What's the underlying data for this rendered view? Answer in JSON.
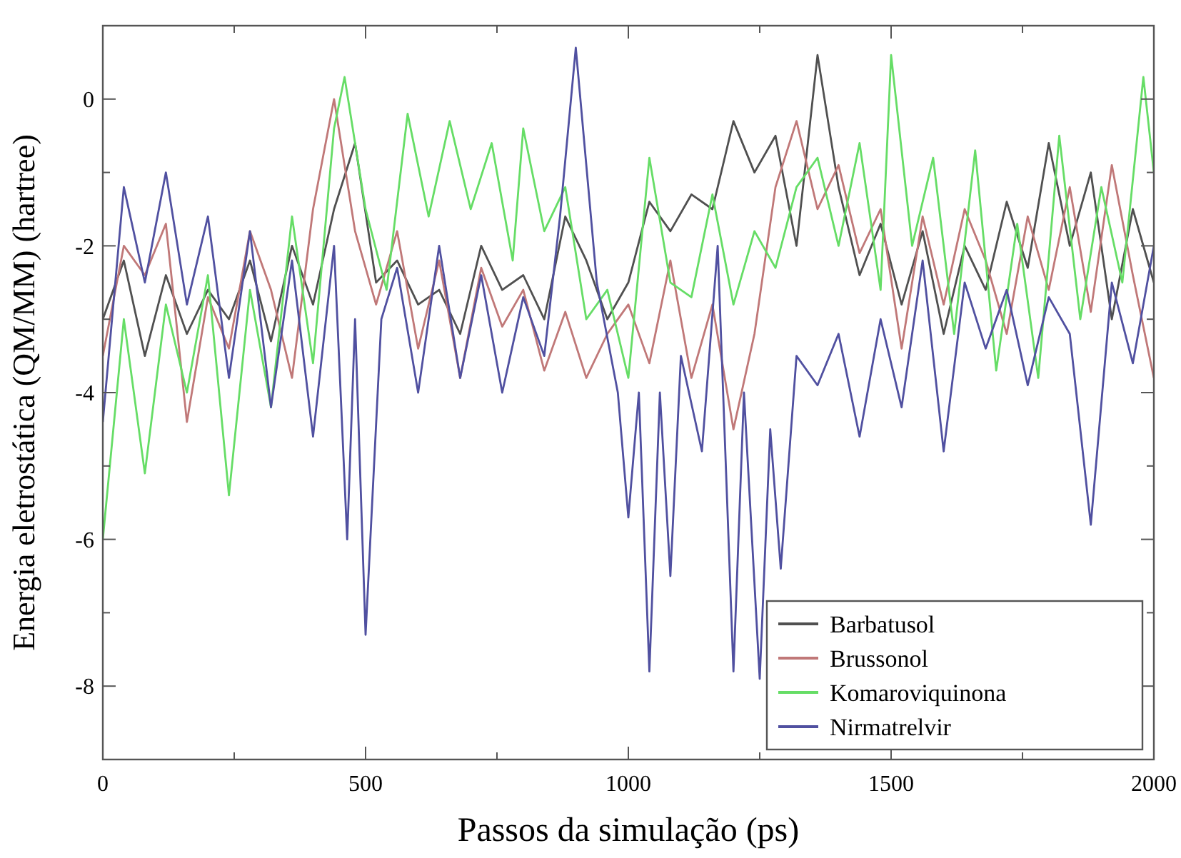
{
  "chart_data": {
    "type": "line",
    "xlabel": "Passos da simulação (ps)",
    "ylabel": "Energia eletrostática (QM/MM) (hartree)",
    "xlim": [
      0,
      2000
    ],
    "ylim": [
      -9,
      1
    ],
    "xticks": [
      0,
      {
        "value": 250,
        "label": null
      },
      500,
      {
        "value": 750,
        "label": null
      },
      1000,
      {
        "value": 1250,
        "label": null
      },
      1500,
      {
        "value": 1750,
        "label": null
      },
      2000
    ],
    "yticks": [
      -8,
      {
        "value": -7,
        "label": null
      },
      -6,
      {
        "value": -5,
        "label": null
      },
      -4,
      {
        "value": -3,
        "label": null
      },
      -2,
      {
        "value": -1,
        "label": null
      },
      0
    ],
    "grid": false,
    "legend": "bottom right",
    "marker": "none",
    "line_style": "solid",
    "series": [
      {
        "name": "Barbatusol",
        "color": "#505050",
        "x": [
          0,
          40,
          80,
          120,
          160,
          200,
          240,
          280,
          320,
          360,
          400,
          440,
          480,
          520,
          560,
          600,
          640,
          680,
          720,
          760,
          800,
          840,
          880,
          920,
          960,
          1000,
          1040,
          1080,
          1120,
          1160,
          1200,
          1240,
          1280,
          1320,
          1360,
          1400,
          1440,
          1480,
          1520,
          1560,
          1600,
          1640,
          1680,
          1720,
          1760,
          1800,
          1840,
          1880,
          1920,
          1960,
          2000
        ],
        "values": [
          -3.0,
          -2.2,
          -3.5,
          -2.4,
          -3.2,
          -2.6,
          -3.0,
          -2.2,
          -3.3,
          -2.0,
          -2.8,
          -1.5,
          -0.6,
          -2.5,
          -2.2,
          -2.8,
          -2.6,
          -3.2,
          -2.0,
          -2.6,
          -2.4,
          -3.0,
          -1.6,
          -2.2,
          -3.0,
          -2.5,
          -1.4,
          -1.8,
          -1.3,
          -1.5,
          -0.3,
          -1.0,
          -0.5,
          -2.0,
          0.6,
          -1.2,
          -2.4,
          -1.7,
          -2.8,
          -1.8,
          -3.2,
          -2.0,
          -2.6,
          -1.4,
          -2.3,
          -0.6,
          -2.0,
          -1.0,
          -3.0,
          -1.5,
          -2.5
        ]
      },
      {
        "name": "Brussonol",
        "color": "#c07878",
        "x": [
          0,
          40,
          80,
          120,
          160,
          200,
          240,
          280,
          320,
          360,
          400,
          440,
          480,
          520,
          560,
          600,
          640,
          680,
          720,
          760,
          800,
          840,
          880,
          920,
          960,
          1000,
          1040,
          1080,
          1120,
          1160,
          1200,
          1240,
          1280,
          1320,
          1360,
          1400,
          1440,
          1480,
          1520,
          1560,
          1600,
          1640,
          1680,
          1720,
          1760,
          1800,
          1840,
          1880,
          1920,
          1960,
          2000
        ],
        "values": [
          -3.5,
          -2.0,
          -2.4,
          -1.7,
          -4.4,
          -2.7,
          -3.4,
          -1.8,
          -2.6,
          -3.8,
          -1.5,
          0.0,
          -1.8,
          -2.8,
          -1.8,
          -3.4,
          -2.2,
          -3.8,
          -2.3,
          -3.1,
          -2.6,
          -3.7,
          -2.9,
          -3.8,
          -3.2,
          -2.8,
          -3.6,
          -2.2,
          -3.8,
          -2.8,
          -4.5,
          -3.2,
          -1.2,
          -0.3,
          -1.5,
          -0.9,
          -2.1,
          -1.5,
          -3.4,
          -1.6,
          -2.8,
          -1.5,
          -2.2,
          -3.2,
          -1.6,
          -2.6,
          -1.2,
          -2.9,
          -0.9,
          -2.4,
          -3.8
        ]
      },
      {
        "name": "Komaroviquinona",
        "color": "#66dd66",
        "x": [
          0,
          40,
          80,
          120,
          160,
          200,
          240,
          280,
          320,
          360,
          400,
          440,
          460,
          500,
          540,
          580,
          620,
          660,
          700,
          740,
          780,
          800,
          840,
          880,
          920,
          960,
          1000,
          1040,
          1080,
          1120,
          1160,
          1200,
          1240,
          1280,
          1320,
          1360,
          1400,
          1440,
          1480,
          1500,
          1540,
          1580,
          1620,
          1660,
          1700,
          1740,
          1780,
          1820,
          1860,
          1900,
          1940,
          1980,
          2000
        ],
        "values": [
          -6.0,
          -3.0,
          -5.1,
          -2.8,
          -4.0,
          -2.4,
          -5.4,
          -2.6,
          -4.2,
          -1.6,
          -3.6,
          -0.4,
          0.3,
          -1.5,
          -2.6,
          -0.2,
          -1.6,
          -0.3,
          -1.5,
          -0.6,
          -2.2,
          -0.4,
          -1.8,
          -1.2,
          -3.0,
          -2.6,
          -3.8,
          -0.8,
          -2.5,
          -2.7,
          -1.3,
          -2.8,
          -1.8,
          -2.3,
          -1.2,
          -0.8,
          -2.0,
          -0.6,
          -2.6,
          0.6,
          -2.0,
          -0.8,
          -3.2,
          -0.7,
          -3.7,
          -1.7,
          -3.8,
          -0.5,
          -3.0,
          -1.2,
          -2.5,
          0.3,
          -1.0
        ]
      },
      {
        "name": "Nirmatrelvir",
        "color": "#5050a0",
        "x": [
          0,
          40,
          80,
          120,
          160,
          200,
          240,
          280,
          320,
          360,
          400,
          440,
          465,
          480,
          500,
          530,
          560,
          600,
          640,
          680,
          720,
          760,
          800,
          840,
          870,
          900,
          940,
          980,
          1000,
          1020,
          1040,
          1060,
          1080,
          1100,
          1140,
          1170,
          1200,
          1220,
          1250,
          1270,
          1290,
          1320,
          1360,
          1400,
          1440,
          1480,
          1520,
          1560,
          1600,
          1640,
          1680,
          1720,
          1760,
          1800,
          1840,
          1880,
          1920,
          1960,
          2000
        ],
        "values": [
          -4.4,
          -1.2,
          -2.5,
          -1.0,
          -2.8,
          -1.6,
          -3.8,
          -1.8,
          -4.2,
          -2.2,
          -4.6,
          -2.0,
          -6.0,
          -3.0,
          -7.3,
          -3.0,
          -2.3,
          -4.0,
          -2.0,
          -3.8,
          -2.4,
          -4.0,
          -2.7,
          -3.5,
          -1.6,
          0.7,
          -2.5,
          -4.0,
          -5.7,
          -4.0,
          -7.8,
          -4.0,
          -6.5,
          -3.5,
          -4.8,
          -2.0,
          -7.8,
          -4.0,
          -7.9,
          -4.5,
          -6.4,
          -3.5,
          -3.9,
          -3.2,
          -4.6,
          -3.0,
          -4.2,
          -2.2,
          -4.8,
          -2.5,
          -3.4,
          -2.6,
          -3.9,
          -2.7,
          -3.2,
          -5.8,
          -2.5,
          -3.6,
          -2.0
        ]
      }
    ]
  }
}
